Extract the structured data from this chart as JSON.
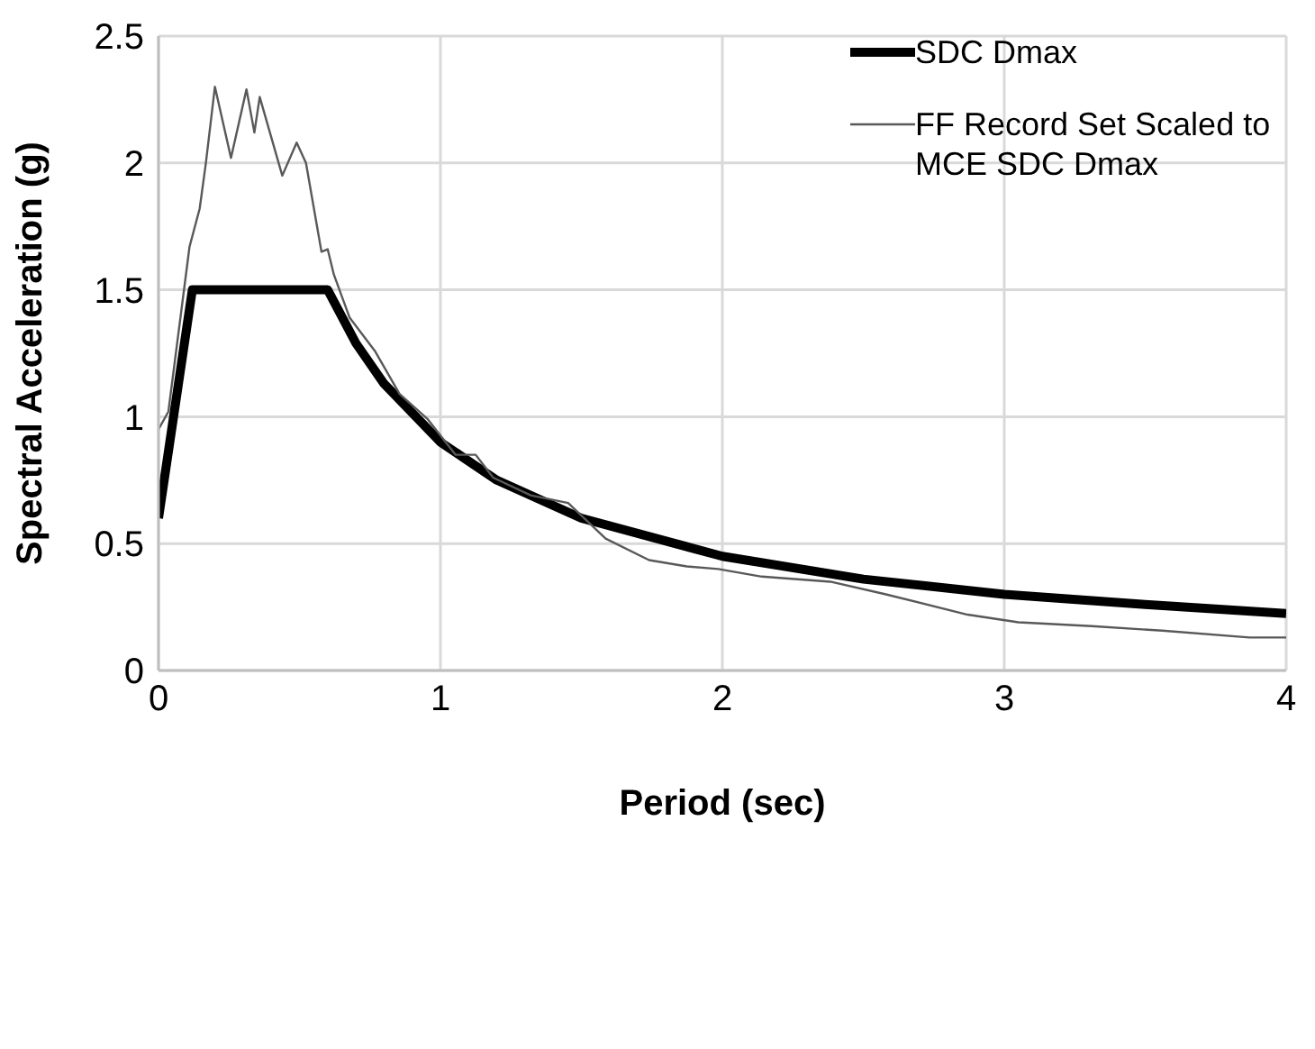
{
  "chart_data": {
    "type": "line",
    "xlabel": "Period (sec)",
    "ylabel": "Spectral Acceleration (g)",
    "xlim": [
      0,
      4
    ],
    "xticks": [
      0,
      1,
      2,
      3,
      4
    ],
    "ylim": [
      0,
      2.5
    ],
    "yticks": [
      0,
      0.5,
      1,
      1.5,
      2,
      2.5
    ],
    "grid": true,
    "legend": "top right",
    "marker": "none",
    "line_style": "solid",
    "series": [
      {
        "name": "SDC Dmax",
        "color": "#000000",
        "x": [
          0,
          0.12,
          0.6,
          0.7,
          0.8,
          1,
          1.2,
          1.5,
          2,
          2.5,
          3,
          3.5,
          4
        ],
        "values": [
          0.6,
          1.5,
          1.5,
          1.29,
          1.13,
          0.9,
          0.75,
          0.6,
          0.45,
          0.36,
          0.3,
          0.26,
          0.225
        ]
      },
      {
        "name": "FF Record Set Scaled to MCE SDC Dmax",
        "color": "#595959",
        "x": [
          0,
          0.035,
          0.11,
          0.146,
          0.168,
          0.2,
          0.257,
          0.312,
          0.34,
          0.359,
          0.439,
          0.49,
          0.523,
          0.578,
          0.6,
          0.622,
          0.678,
          0.767,
          0.855,
          0.955,
          1.054,
          1.125,
          1.187,
          1.32,
          1.453,
          1.586,
          1.74,
          1.874,
          1.985,
          2.14,
          2.383,
          2.58,
          2.87,
          3.05,
          3.31,
          3.56,
          3.87,
          4
        ],
        "values": [
          0.95,
          1.02,
          1.67,
          1.82,
          2.0,
          2.3,
          2.02,
          2.29,
          2.12,
          2.26,
          1.95,
          2.08,
          2.0,
          1.65,
          1.66,
          1.56,
          1.39,
          1.26,
          1.09,
          0.99,
          0.85,
          0.85,
          0.76,
          0.69,
          0.66,
          0.52,
          0.435,
          0.41,
          0.4,
          0.37,
          0.35,
          0.3,
          0.22,
          0.19,
          0.175,
          0.157,
          0.13,
          0.13
        ]
      }
    ]
  }
}
